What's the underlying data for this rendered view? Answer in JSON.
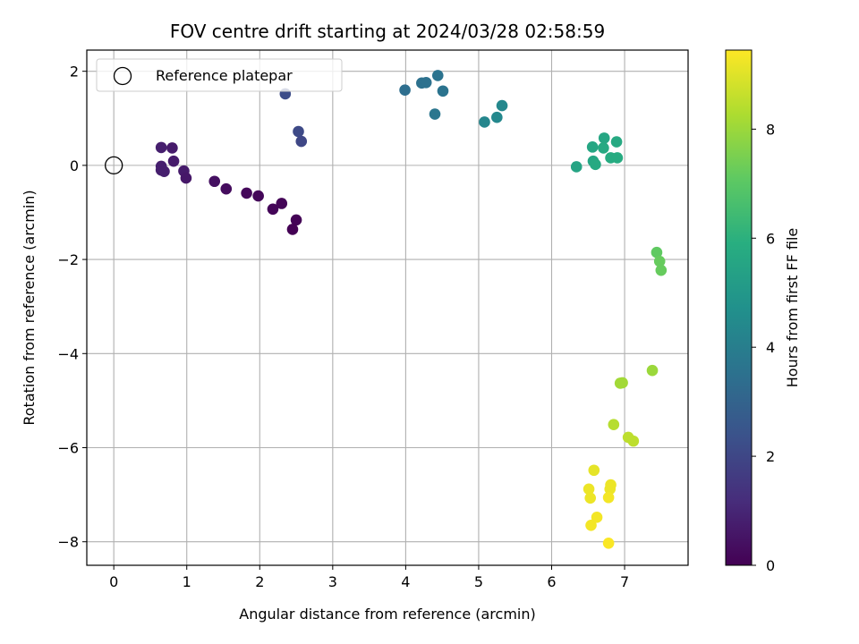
{
  "chart_data": {
    "type": "scatter",
    "title": "FOV centre drift starting at 2024/03/28 02:58:59",
    "xlabel": "Angular distance from reference (arcmin)",
    "ylabel": "Rotation from reference (arcmin)",
    "xlim": [
      -0.37,
      7.87
    ],
    "ylim": [
      -8.5,
      2.45
    ],
    "xticks": [
      0,
      1,
      2,
      3,
      4,
      5,
      6,
      7
    ],
    "yticks": [
      -8,
      -6,
      -4,
      -2,
      0,
      2
    ],
    "grid": true,
    "legend": {
      "placement": "top-left",
      "entries": [
        "Reference platepar"
      ]
    },
    "reference_point": {
      "x": 0,
      "y": 0
    },
    "colorbar": {
      "label": "Hours from first FF file",
      "range": [
        0,
        9.45
      ],
      "ticks": [
        0,
        2,
        4,
        6,
        8
      ],
      "colormap": "viridis"
    },
    "points": [
      {
        "x": 0.65,
        "y": 0.38,
        "h": 0.8
      },
      {
        "x": 0.8,
        "y": 0.37,
        "h": 0.7
      },
      {
        "x": 0.65,
        "y": -0.02,
        "h": 0.8
      },
      {
        "x": 0.65,
        "y": -0.1,
        "h": 0.8
      },
      {
        "x": 0.69,
        "y": -0.13,
        "h": 0.8
      },
      {
        "x": 0.82,
        "y": 0.09,
        "h": 0.7
      },
      {
        "x": 0.96,
        "y": -0.12,
        "h": 0.7
      },
      {
        "x": 0.99,
        "y": -0.27,
        "h": 0.6
      },
      {
        "x": 1.38,
        "y": -0.34,
        "h": 0.4
      },
      {
        "x": 1.54,
        "y": -0.5,
        "h": 0.3
      },
      {
        "x": 1.82,
        "y": -0.59,
        "h": 0.2
      },
      {
        "x": 1.98,
        "y": -0.65,
        "h": 0.15
      },
      {
        "x": 2.18,
        "y": -0.93,
        "h": 0.12
      },
      {
        "x": 2.3,
        "y": -0.81,
        "h": 0.1
      },
      {
        "x": 2.5,
        "y": -1.16,
        "h": 0.05
      },
      {
        "x": 2.45,
        "y": -1.36,
        "h": 0.0
      },
      {
        "x": 2.35,
        "y": 1.52,
        "h": 2.2
      },
      {
        "x": 2.53,
        "y": 0.72,
        "h": 2.1
      },
      {
        "x": 2.57,
        "y": 0.51,
        "h": 2.0
      },
      {
        "x": 3.99,
        "y": 1.6,
        "h": 3.4
      },
      {
        "x": 4.22,
        "y": 1.75,
        "h": 3.5
      },
      {
        "x": 4.28,
        "y": 1.76,
        "h": 3.5
      },
      {
        "x": 4.44,
        "y": 1.91,
        "h": 3.6
      },
      {
        "x": 4.51,
        "y": 1.58,
        "h": 3.6
      },
      {
        "x": 4.4,
        "y": 1.09,
        "h": 3.7
      },
      {
        "x": 5.08,
        "y": 0.92,
        "h": 4.3
      },
      {
        "x": 5.25,
        "y": 1.02,
        "h": 4.4
      },
      {
        "x": 5.32,
        "y": 1.27,
        "h": 4.4
      },
      {
        "x": 6.34,
        "y": -0.03,
        "h": 5.5
      },
      {
        "x": 6.56,
        "y": 0.39,
        "h": 5.6
      },
      {
        "x": 6.72,
        "y": 0.58,
        "h": 5.6
      },
      {
        "x": 6.71,
        "y": 0.37,
        "h": 5.7
      },
      {
        "x": 6.89,
        "y": 0.5,
        "h": 5.7
      },
      {
        "x": 6.57,
        "y": 0.09,
        "h": 5.6
      },
      {
        "x": 6.6,
        "y": 0.02,
        "h": 5.7
      },
      {
        "x": 6.81,
        "y": 0.16,
        "h": 5.8
      },
      {
        "x": 6.9,
        "y": 0.16,
        "h": 5.8
      },
      {
        "x": 7.44,
        "y": -1.85,
        "h": 7.1
      },
      {
        "x": 7.48,
        "y": -2.04,
        "h": 7.2
      },
      {
        "x": 7.5,
        "y": -2.23,
        "h": 7.2
      },
      {
        "x": 7.38,
        "y": -4.36,
        "h": 8.0
      },
      {
        "x": 6.94,
        "y": -4.63,
        "h": 8.1
      },
      {
        "x": 6.97,
        "y": -4.62,
        "h": 8.1
      },
      {
        "x": 6.85,
        "y": -5.51,
        "h": 8.4
      },
      {
        "x": 7.05,
        "y": -5.78,
        "h": 8.5
      },
      {
        "x": 7.12,
        "y": -5.86,
        "h": 8.5
      },
      {
        "x": 6.58,
        "y": -6.48,
        "h": 9.1
      },
      {
        "x": 6.51,
        "y": -6.88,
        "h": 9.2
      },
      {
        "x": 6.53,
        "y": -7.07,
        "h": 9.2
      },
      {
        "x": 6.81,
        "y": -6.79,
        "h": 9.2
      },
      {
        "x": 6.8,
        "y": -6.88,
        "h": 9.2
      },
      {
        "x": 6.78,
        "y": -7.06,
        "h": 9.3
      },
      {
        "x": 6.62,
        "y": -7.48,
        "h": 9.3
      },
      {
        "x": 6.54,
        "y": -7.65,
        "h": 9.3
      },
      {
        "x": 6.78,
        "y": -8.03,
        "h": 9.4
      }
    ]
  }
}
